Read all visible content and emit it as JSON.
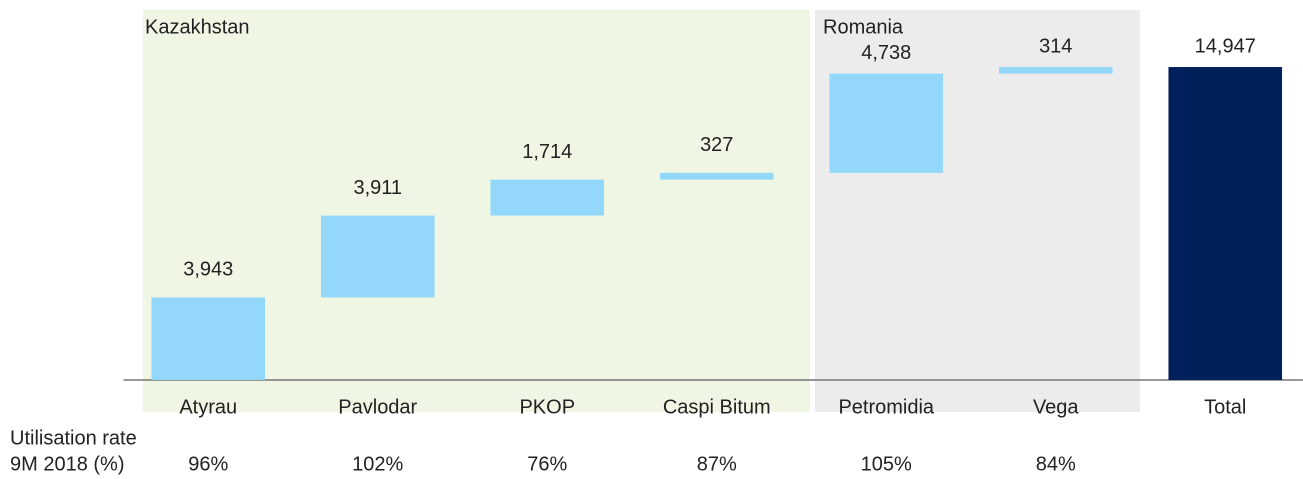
{
  "chart_data": {
    "type": "waterfall",
    "categories": [
      "Atyrau",
      "Pavlodar",
      "PKOP",
      "Caspi Bitum",
      "Petromidia",
      "Vega",
      "Total"
    ],
    "values": [
      3943,
      3911,
      1714,
      327,
      4738,
      314,
      14947
    ],
    "value_labels": [
      "3,943",
      "3,911",
      "1,714",
      "327",
      "4,738",
      "314",
      "14,947"
    ],
    "color": "#93d7fb",
    "total_color": "#00205b",
    "ylim": [
      0,
      16000
    ],
    "groups": [
      "Kazakhstan",
      "Romania"
    ],
    "utilisation": {
      "title": [
        "Utilisation rate",
        "9M 2018 (%)"
      ],
      "rates": [
        "96%",
        "102%",
        "76%",
        "87%",
        "105%",
        "84%"
      ]
    }
  }
}
